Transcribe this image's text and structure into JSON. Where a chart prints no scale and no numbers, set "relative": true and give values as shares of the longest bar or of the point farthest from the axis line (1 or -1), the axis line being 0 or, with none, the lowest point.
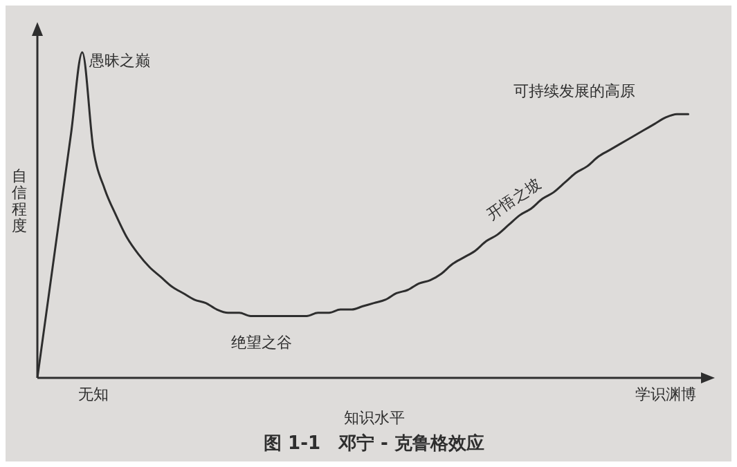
{
  "chart_data": {
    "type": "line",
    "title": "图 1-1　邓宁 - 克鲁格效应",
    "xlabel": "知识水平",
    "ylabel": "自信程度",
    "relative": true,
    "grid": false,
    "marker": "none",
    "legend": false,
    "annotations": [
      "愚昧之巅",
      "绝望之谷",
      "开悟之坡",
      "可持续发展的高原"
    ],
    "categories": [
      null,
      null,
      null,
      null,
      null,
      "无知",
      null,
      null,
      null,
      null,
      null,
      null,
      null,
      null,
      null,
      null,
      null,
      null,
      null,
      null,
      null,
      null,
      null,
      null,
      null,
      null,
      null,
      null,
      null,
      null,
      null,
      null,
      null,
      null,
      null,
      null,
      null,
      null,
      null,
      null,
      null,
      null,
      null,
      null,
      null,
      null,
      null,
      null,
      null,
      null,
      null,
      null,
      null,
      null,
      null,
      null,
      "学识渊博",
      null,
      null,
      null,
      null
    ],
    "series": [
      {
        "color": "#2e2e2e",
        "values": [
          0,
          0.25,
          0.5,
          0.75,
          1,
          0.7,
          0.58,
          0.5,
          0.43,
          0.38,
          0.34,
          0.31,
          0.28,
          0.26,
          0.24,
          0.23,
          0.21,
          0.2,
          0.2,
          0.19,
          0.19,
          0.19,
          0.19,
          0.19,
          0.19,
          0.2,
          0.2,
          0.21,
          0.21,
          0.22,
          0.23,
          0.24,
          0.26,
          0.27,
          0.29,
          0.3,
          0.32,
          0.35,
          0.37,
          0.39,
          0.42,
          0.44,
          0.47,
          0.5,
          0.52,
          0.55,
          0.57,
          0.6,
          0.63,
          0.65,
          0.68,
          0.7,
          0.72,
          0.74,
          0.76,
          0.78,
          0.8,
          0.81,
          0.81,
          null,
          null
        ]
      }
    ]
  }
}
